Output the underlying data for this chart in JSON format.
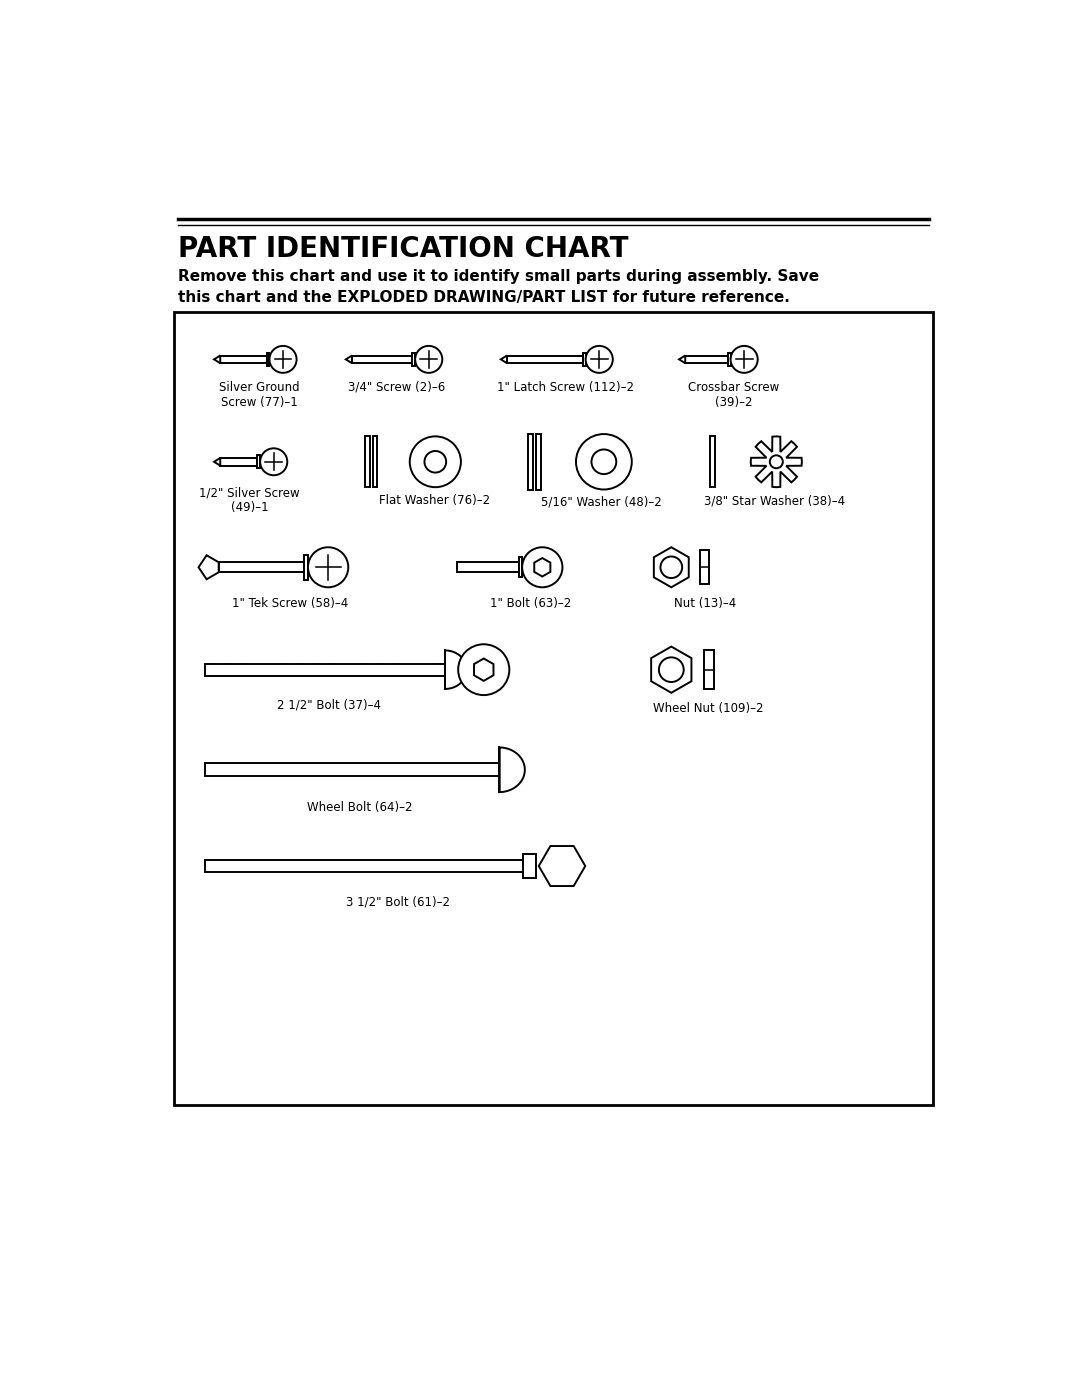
{
  "title": "PART IDENTIFICATION CHART",
  "subtitle_line1": "Remove this chart and use it to identify small parts during assembly. Save",
  "subtitle_line2": "this chart and the EXPLODED DRAWING/PART LIST for future reference.",
  "bg_color": "#ffffff",
  "box_color": "#000000",
  "fig_width": 10.8,
  "fig_height": 13.97,
  "dpi": 100
}
